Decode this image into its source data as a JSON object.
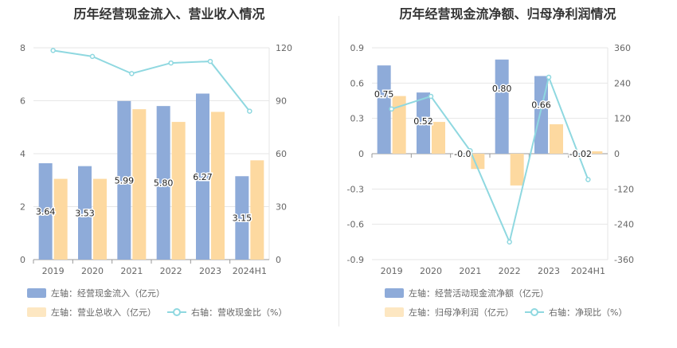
{
  "colors": {
    "inflow": "#8eabd9",
    "revenue": "#fdd9a0",
    "ratio": "#8fd8e0",
    "grid": "#e6e6e6",
    "axis": "#999999",
    "text": "#666666"
  },
  "chart_data": [
    {
      "type": "bar",
      "title": "历年经营现金流入、营业收入情况",
      "categories": [
        "2019",
        "2020",
        "2021",
        "2022",
        "2023",
        "2024H1"
      ],
      "left_axis": {
        "ylim": [
          0,
          8
        ],
        "ticks": [
          "0",
          "2",
          "4",
          "6",
          "8"
        ]
      },
      "right_axis": {
        "ylim": [
          0,
          120
        ],
        "ticks": [
          "0",
          "30",
          "60",
          "90",
          "120"
        ]
      },
      "series": [
        {
          "name": "左轴：经营现金流入（亿元）",
          "axis": "left",
          "type": "bar",
          "values": [
            3.64,
            3.53,
            5.99,
            5.8,
            6.27,
            3.15
          ],
          "labels": [
            "3.64",
            "3.53",
            "5.99",
            "5.80",
            "6.27",
            "3.15"
          ]
        },
        {
          "name": "左轴：营业总收入（亿元）",
          "axis": "left",
          "type": "bar",
          "values": [
            3.05,
            3.05,
            5.68,
            5.2,
            5.58,
            3.75
          ]
        },
        {
          "name": "右轴：营收现金比（%）",
          "axis": "right",
          "type": "line",
          "values": [
            118.5,
            115.1,
            105.4,
            111.4,
            112.3,
            84.1
          ]
        }
      ]
    },
    {
      "type": "bar",
      "title": "历年经营现金流净额、归母净利润情况",
      "categories": [
        "2019",
        "2020",
        "2021",
        "2022",
        "2023",
        "2024H1"
      ],
      "left_axis": {
        "ylim": [
          -0.9,
          0.9
        ],
        "ticks": [
          "-0.9",
          "-0.6",
          "-0.3",
          "0",
          "0.3",
          "0.6",
          "0.9"
        ]
      },
      "right_axis": {
        "ylim": [
          -360,
          360
        ],
        "ticks": [
          "-360",
          "-240",
          "-120",
          "0",
          "120",
          "240",
          "360"
        ]
      },
      "series": [
        {
          "name": "左轴：经营活动现金流净额（亿元）",
          "axis": "left",
          "type": "bar",
          "values": [
            0.75,
            0.52,
            -0.0,
            0.8,
            0.66,
            -0.02
          ],
          "labels": [
            "0.75",
            "0.52",
            "-0.0",
            "0.80",
            "0.66",
            "-0.02"
          ]
        },
        {
          "name": "左轴：归母净利润（亿元）",
          "axis": "left",
          "type": "bar",
          "values": [
            0.49,
            0.27,
            -0.13,
            -0.27,
            0.25,
            0.02
          ]
        },
        {
          "name": "右轴：净现比（%）",
          "axis": "right",
          "type": "line",
          "values": [
            152,
            195,
            10,
            -300,
            260,
            -88
          ]
        }
      ]
    }
  ]
}
